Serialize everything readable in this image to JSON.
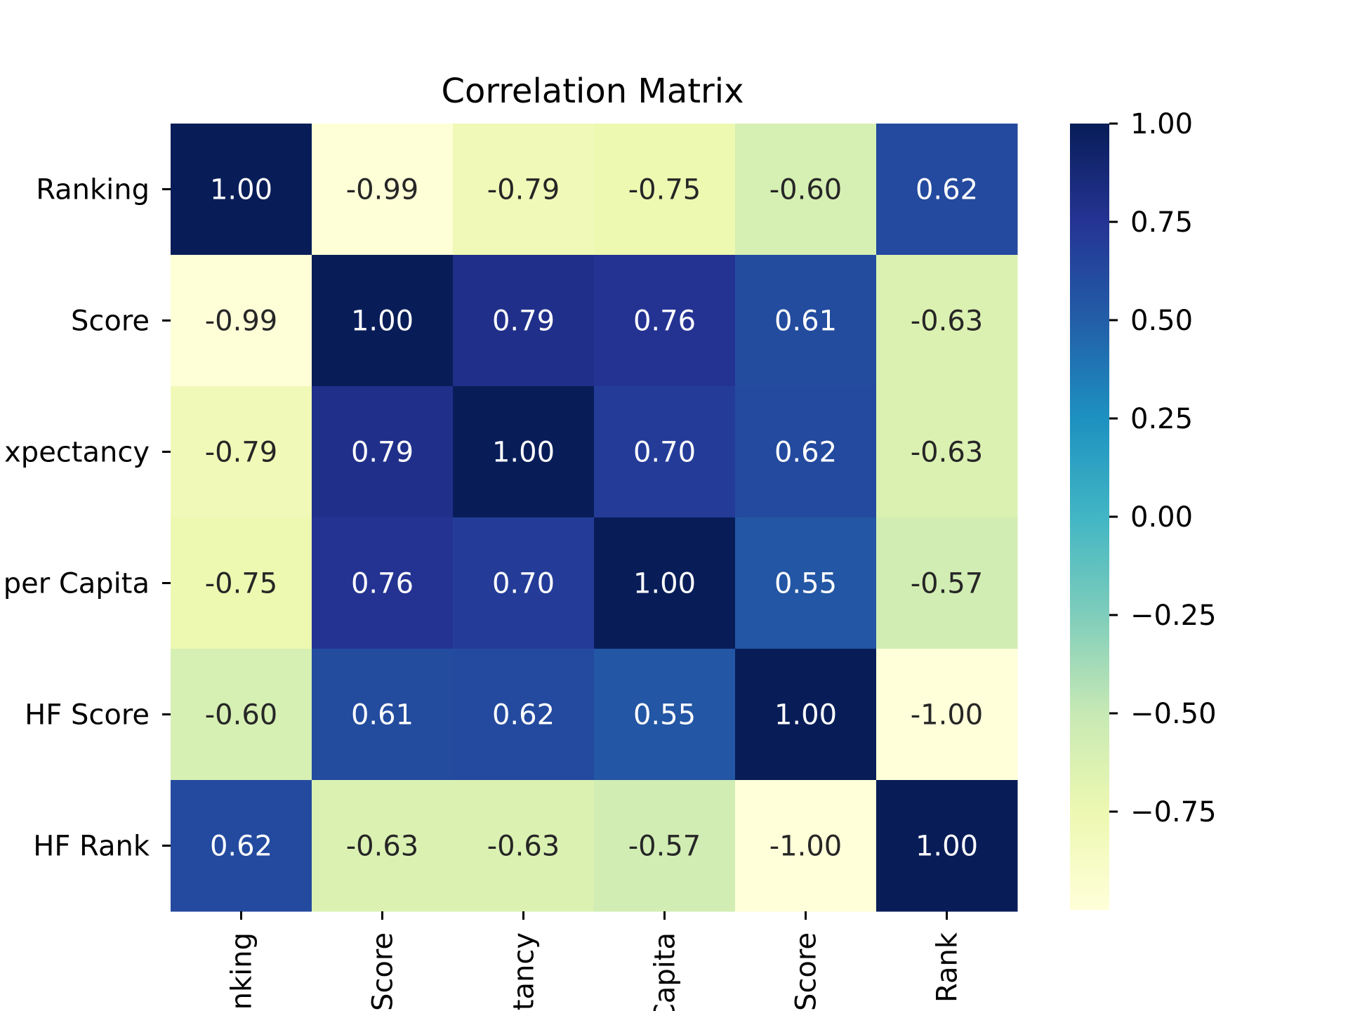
{
  "chart_data": {
    "type": "heatmap",
    "title": "Correlation Matrix",
    "xlabel": "",
    "ylabel": "",
    "row_labels": [
      "Ranking",
      "Score",
      "xpectancy",
      "per Capita",
      "HF Score",
      "HF Rank"
    ],
    "col_labels": [
      "anking",
      "Score",
      "ctancy",
      "Capita",
      "Score",
      "F Rank"
    ],
    "values": [
      [
        1.0,
        -0.99,
        -0.79,
        -0.75,
        -0.6,
        0.62
      ],
      [
        -0.99,
        1.0,
        0.79,
        0.76,
        0.61,
        -0.63
      ],
      [
        -0.79,
        0.79,
        1.0,
        0.7,
        0.62,
        -0.63
      ],
      [
        -0.75,
        0.76,
        0.7,
        1.0,
        0.55,
        -0.57
      ],
      [
        -0.6,
        0.61,
        0.62,
        0.55,
        1.0,
        -1.0
      ],
      [
        0.62,
        -0.63,
        -0.63,
        -0.57,
        -1.0,
        1.0
      ]
    ],
    "cell_labels": [
      [
        "1.00",
        "-0.99",
        "-0.79",
        "-0.75",
        "-0.60",
        "0.62"
      ],
      [
        "-0.99",
        "1.00",
        "0.79",
        "0.76",
        "0.61",
        "-0.63"
      ],
      [
        "-0.79",
        "0.79",
        "1.00",
        "0.70",
        "0.62",
        "-0.63"
      ],
      [
        "-0.75",
        "0.76",
        "0.70",
        "1.00",
        "0.55",
        "-0.57"
      ],
      [
        "-0.60",
        "0.61",
        "0.62",
        "0.55",
        "1.00",
        "-1.00"
      ],
      [
        "0.62",
        "-0.63",
        "-0.63",
        "-0.57",
        "-1.00",
        "1.00"
      ]
    ],
    "colormap": "YlGnBu",
    "vmin": -1.0,
    "vmax": 1.0,
    "colorbar": {
      "ticks": [
        1.0,
        0.75,
        0.5,
        0.25,
        0.0,
        -0.25,
        -0.5,
        -0.75
      ],
      "tick_labels": [
        "1.00",
        "0.75",
        "0.50",
        "0.25",
        "0.00",
        "−0.25",
        "−0.50",
        "−0.75"
      ]
    },
    "colors": {
      "dark_text": "#262626",
      "light_text": "#ffffff"
    }
  }
}
